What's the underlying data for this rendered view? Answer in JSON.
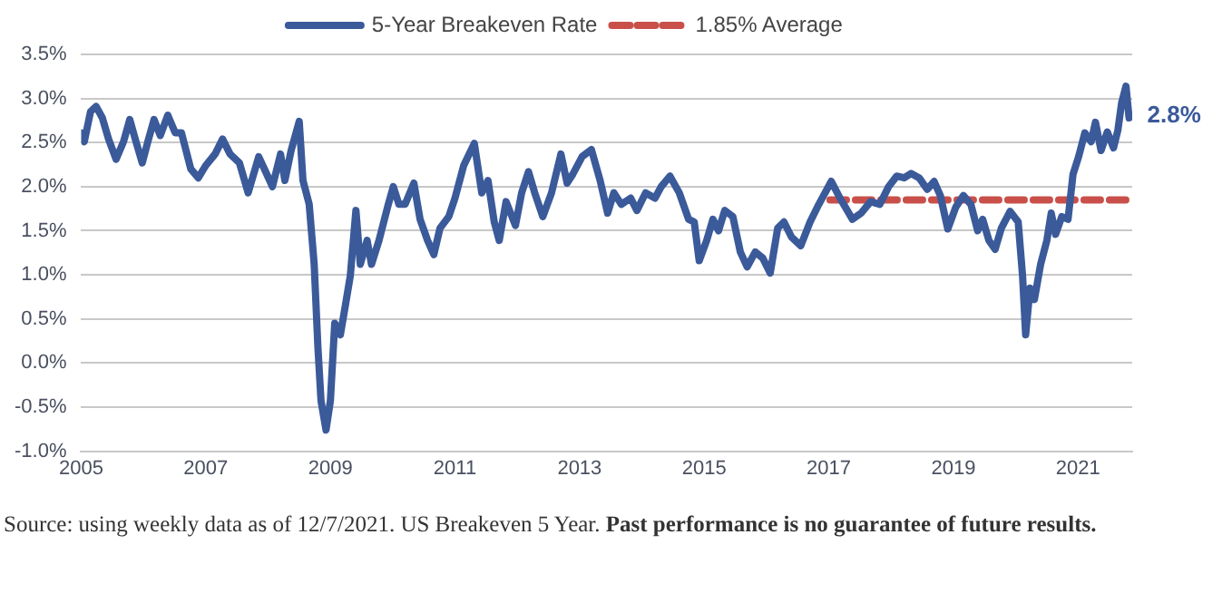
{
  "chart_data": {
    "type": "line",
    "xlim": [
      2005,
      2021.87
    ],
    "xticks": [
      2005,
      2007,
      2009,
      2011,
      2013,
      2015,
      2017,
      2019,
      2021
    ],
    "ylim": [
      -1.0,
      3.5
    ],
    "yticks": [
      {
        "value": -1.0,
        "label": "-1.0%"
      },
      {
        "value": -0.5,
        "label": "-0.5%"
      },
      {
        "value": 0,
        "label": "0.0%"
      },
      {
        "value": 0.5,
        "label": "0.5%"
      },
      {
        "value": 1.0,
        "label": "1.0%"
      },
      {
        "value": 1.5,
        "label": "1.5%"
      },
      {
        "value": 2.0,
        "label": "2.0%"
      },
      {
        "value": 2.5,
        "label": "2.5%"
      },
      {
        "value": 3.0,
        "label": "3.0%"
      },
      {
        "value": 3.5,
        "label": "3.5%"
      }
    ],
    "grid": "y",
    "legend": "top",
    "marker": "none",
    "series": [
      {
        "name": "5-Year Breakeven Rate",
        "color": "#3b5a9a",
        "line_style": "solid",
        "x": [
          2005.0,
          2005.05,
          2005.15,
          2005.24,
          2005.34,
          2005.44,
          2005.56,
          2005.68,
          2005.78,
          2005.88,
          2005.98,
          2006.07,
          2006.17,
          2006.27,
          2006.39,
          2006.51,
          2006.61,
          2006.76,
          2006.88,
          2007.0,
          2007.15,
          2007.27,
          2007.39,
          2007.54,
          2007.68,
          2007.85,
          2007.98,
          2008.07,
          2008.2,
          2008.27,
          2008.37,
          2008.5,
          2008.56,
          2008.66,
          2008.74,
          2008.8,
          2008.85,
          2008.93,
          2009.0,
          2009.07,
          2009.16,
          2009.24,
          2009.32,
          2009.41,
          2009.48,
          2009.59,
          2009.66,
          2009.78,
          2009.93,
          2010.01,
          2010.1,
          2010.2,
          2010.34,
          2010.44,
          2010.56,
          2010.66,
          2010.76,
          2010.9,
          2011.0,
          2011.14,
          2011.31,
          2011.43,
          2011.53,
          2011.63,
          2011.71,
          2011.82,
          2011.97,
          2012.07,
          2012.18,
          2012.28,
          2012.41,
          2012.55,
          2012.7,
          2012.8,
          2012.89,
          2013.04,
          2013.19,
          2013.33,
          2013.45,
          2013.55,
          2013.67,
          2013.82,
          2013.92,
          2014.06,
          2014.21,
          2014.31,
          2014.45,
          2014.6,
          2014.75,
          2014.84,
          2014.92,
          2015.04,
          2015.14,
          2015.23,
          2015.33,
          2015.46,
          2015.58,
          2015.69,
          2015.82,
          2015.94,
          2016.06,
          2016.18,
          2016.28,
          2016.4,
          2016.55,
          2016.7,
          2016.84,
          2017.04,
          2017.18,
          2017.38,
          2017.52,
          2017.67,
          2017.82,
          2017.96,
          2018.09,
          2018.21,
          2018.32,
          2018.45,
          2018.58,
          2018.69,
          2018.79,
          2018.91,
          2019.04,
          2019.16,
          2019.28,
          2019.39,
          2019.47,
          2019.57,
          2019.67,
          2019.77,
          2019.91,
          2020.04,
          2020.11,
          2020.16,
          2020.23,
          2020.3,
          2020.4,
          2020.5,
          2020.57,
          2020.64,
          2020.74,
          2020.84,
          2020.92,
          2021.01,
          2021.11,
          2021.21,
          2021.28,
          2021.37,
          2021.47,
          2021.57,
          2021.64,
          2021.7,
          2021.77,
          2021.82
        ],
        "values": [
          2.61,
          2.51,
          2.85,
          2.91,
          2.78,
          2.54,
          2.31,
          2.51,
          2.76,
          2.51,
          2.27,
          2.51,
          2.76,
          2.58,
          2.81,
          2.61,
          2.61,
          2.2,
          2.1,
          2.24,
          2.37,
          2.54,
          2.37,
          2.27,
          1.93,
          2.34,
          2.14,
          2.0,
          2.37,
          2.07,
          2.41,
          2.74,
          2.07,
          1.8,
          1.12,
          0.18,
          -0.43,
          -0.76,
          -0.43,
          0.45,
          0.32,
          0.65,
          0.99,
          1.73,
          1.12,
          1.39,
          1.12,
          1.39,
          1.8,
          2.0,
          1.8,
          1.8,
          2.04,
          1.63,
          1.39,
          1.23,
          1.53,
          1.66,
          1.87,
          2.24,
          2.49,
          1.93,
          2.07,
          1.6,
          1.39,
          1.83,
          1.56,
          1.93,
          2.17,
          1.93,
          1.66,
          1.93,
          2.37,
          2.04,
          2.14,
          2.34,
          2.42,
          2.07,
          1.7,
          1.93,
          1.8,
          1.87,
          1.73,
          1.93,
          1.87,
          2.0,
          2.12,
          1.93,
          1.63,
          1.6,
          1.16,
          1.39,
          1.63,
          1.5,
          1.73,
          1.66,
          1.26,
          1.09,
          1.26,
          1.19,
          1.02,
          1.53,
          1.6,
          1.43,
          1.33,
          1.6,
          1.8,
          2.06,
          1.87,
          1.63,
          1.7,
          1.83,
          1.8,
          2.0,
          2.12,
          2.1,
          2.15,
          2.1,
          1.97,
          2.06,
          1.9,
          1.52,
          1.77,
          1.9,
          1.8,
          1.5,
          1.63,
          1.39,
          1.29,
          1.53,
          1.72,
          1.6,
          0.99,
          0.32,
          0.85,
          0.72,
          1.12,
          1.39,
          1.7,
          1.46,
          1.66,
          1.63,
          2.14,
          2.34,
          2.61,
          2.51,
          2.73,
          2.41,
          2.62,
          2.44,
          2.64,
          2.95,
          3.14,
          2.78
        ]
      },
      {
        "name": "1.85% Average",
        "color": "#c9504a",
        "line_style": "dashed",
        "x": [
          2017.02,
          2021.87
        ],
        "values": [
          1.85,
          1.85
        ]
      }
    ],
    "annotations": [
      {
        "text": "2.8%",
        "x": 2021.82,
        "y": 2.8
      },
      "Source: using weekly data as of 12/7/2021. US Breakeven 5 Year.",
      "Past performance is no guarantee of future results."
    ]
  }
}
